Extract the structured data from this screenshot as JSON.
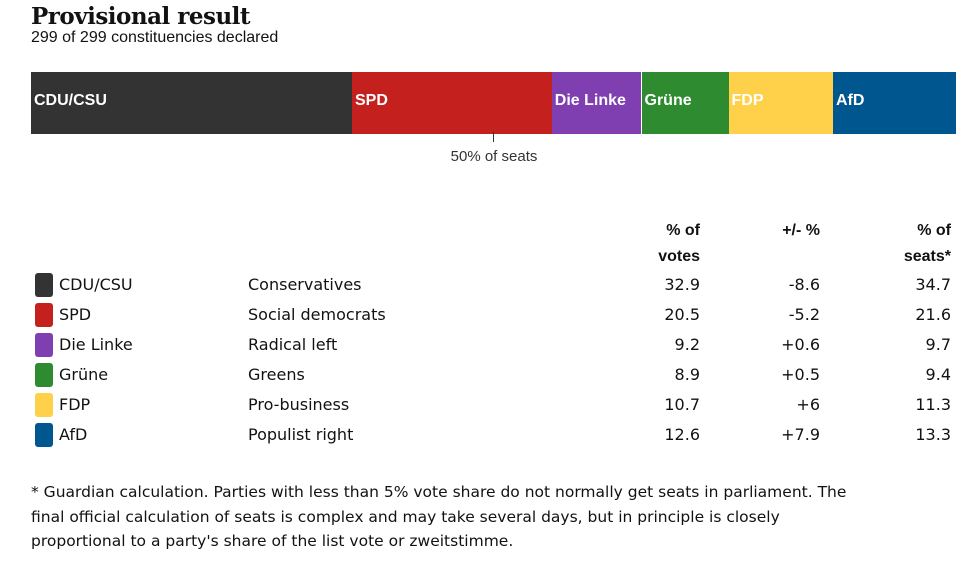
{
  "title": "Provisional result",
  "subtitle": "299 of 299 constituencies declared",
  "marker_label": "50% of seats",
  "marker_value": 50,
  "headers": {
    "votes": [
      "% of",
      "votes"
    ],
    "change": [
      "+/- %",
      ""
    ],
    "seats": [
      "% of",
      "seats*"
    ]
  },
  "chart_data": {
    "type": "bar",
    "orientation": "horizontal-stacked",
    "title": "Provisional result",
    "categories": [
      "CDU/CSU",
      "SPD",
      "Die Linke",
      "Grüne",
      "FDP",
      "AfD"
    ],
    "series": [
      {
        "name": "% of votes",
        "values": [
          32.9,
          20.5,
          9.2,
          8.9,
          10.7,
          12.6
        ]
      },
      {
        "name": "+/- %",
        "values": [
          -8.6,
          -5.2,
          0.6,
          0.5,
          6,
          7.9
        ]
      },
      {
        "name": "% of seats*",
        "values": [
          34.7,
          21.6,
          9.7,
          9.4,
          11.3,
          13.3
        ]
      }
    ],
    "bar_series": "% of seats*",
    "ylim": [
      0,
      100
    ]
  },
  "parties": [
    {
      "name": "CDU/CSU",
      "desc": "Conservatives",
      "votes": "32.9",
      "change": "-8.6",
      "seats": "34.7",
      "seats_value": 34.7,
      "color": "#333333"
    },
    {
      "name": "SPD",
      "desc": "Social democrats",
      "votes": "20.5",
      "change": "-5.2",
      "seats": "21.6",
      "seats_value": 21.6,
      "color": "#c4201d"
    },
    {
      "name": "Die Linke",
      "desc": "Radical left",
      "votes": "9.2",
      "change": "+0.6",
      "seats": "9.7",
      "seats_value": 9.7,
      "color": "#7f3fb0"
    },
    {
      "name": "Grüne",
      "desc": "Greens",
      "votes": "8.9",
      "change": "+0.5",
      "seats": "9.4",
      "seats_value": 9.4,
      "color": "#2f8b2f"
    },
    {
      "name": "FDP",
      "desc": "Pro-business",
      "votes": "10.7",
      "change": "+6",
      "seats": "11.3",
      "seats_value": 11.3,
      "color": "#ffd04a"
    },
    {
      "name": "AfD",
      "desc": "Populist right",
      "votes": "12.6",
      "change": "+7.9",
      "seats": "13.3",
      "seats_value": 13.3,
      "color": "#00568f"
    }
  ],
  "footnote": "* Guardian calculation. Parties with less than 5% vote share do not normally get seats in parliament. The final official calculation of seats is complex and may take several days, but in principle is closely proportional to a party's share of the list vote or zweitstimme."
}
